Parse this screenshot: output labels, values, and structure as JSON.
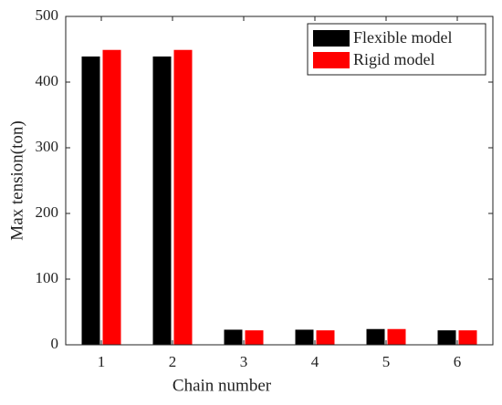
{
  "chart_data": {
    "type": "bar",
    "xlabel": "Chain number",
    "ylabel": "Max tension(ton)",
    "categories": [
      "1",
      "2",
      "3",
      "4",
      "5",
      "6"
    ],
    "series": [
      {
        "name": "Flexible model",
        "color": "#000000",
        "values": [
          439,
          439,
          23,
          23,
          24,
          22
        ]
      },
      {
        "name": "Rigid model",
        "color": "#ff0000",
        "values": [
          449,
          449,
          22,
          22,
          24,
          22
        ]
      }
    ],
    "ylim": [
      0,
      500
    ],
    "yticks": [
      0,
      100,
      200,
      300,
      400,
      500
    ],
    "legend": "upper right"
  }
}
